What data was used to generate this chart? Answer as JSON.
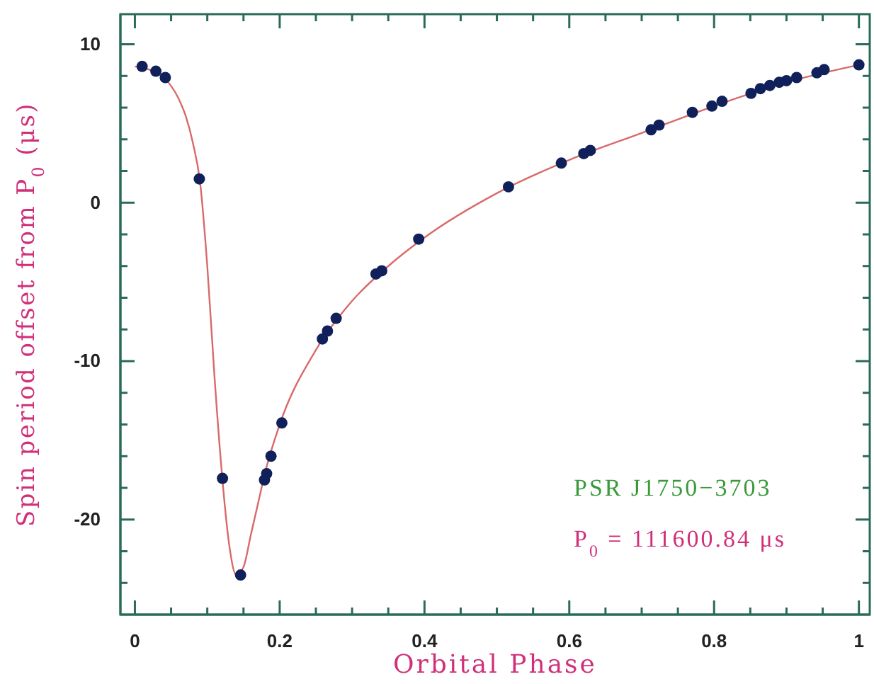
{
  "chart_data": {
    "type": "scatter",
    "xlabel": "Orbital Phase",
    "ylabel": "Spin period offset from P$_{0}$ (μs)",
    "annotations": [
      "PSR J1750−3703",
      "P$_{0}$ = 111600.84 μs"
    ],
    "xlim": [
      -0.02,
      1.015
    ],
    "ylim": [
      -26,
      11.9
    ],
    "xticks": [
      0,
      {
        "value": 0.05,
        "label": null
      },
      {
        "value": 0.1,
        "label": null
      },
      {
        "value": 0.15,
        "label": null
      },
      0.2,
      {
        "value": 0.25,
        "label": null
      },
      {
        "value": 0.3,
        "label": null
      },
      {
        "value": 0.35,
        "label": null
      },
      0.4,
      {
        "value": 0.45,
        "label": null
      },
      {
        "value": 0.5,
        "label": null
      },
      {
        "value": 0.55,
        "label": null
      },
      0.6,
      {
        "value": 0.65,
        "label": null
      },
      {
        "value": 0.7,
        "label": null
      },
      {
        "value": 0.75,
        "label": null
      },
      0.8,
      {
        "value": 0.85,
        "label": null
      },
      {
        "value": 0.9,
        "label": null
      },
      {
        "value": 0.95,
        "label": null
      },
      1
    ],
    "yticks": [
      {
        "value": -24,
        "label": null
      },
      {
        "value": -22,
        "label": null
      },
      -20,
      {
        "value": -18,
        "label": null
      },
      {
        "value": -16,
        "label": null
      },
      {
        "value": -14,
        "label": null
      },
      {
        "value": -12,
        "label": null
      },
      -10,
      {
        "value": -8,
        "label": null
      },
      {
        "value": -6,
        "label": null
      },
      {
        "value": -4,
        "label": null
      },
      {
        "value": -2,
        "label": null
      },
      0,
      {
        "value": 2,
        "label": null
      },
      {
        "value": 4,
        "label": null
      },
      {
        "value": 6,
        "label": null
      },
      {
        "value": 8,
        "label": null
      },
      10
    ],
    "grid": false,
    "marker": "circle",
    "series": [
      {
        "type": "line",
        "color": "#d96a6a",
        "line_style": "solid",
        "marker": "none",
        "x": [
          0,
          0.02,
          0.04,
          0.06,
          0.07,
          0.08,
          0.09,
          0.1,
          0.11,
          0.12,
          0.13,
          0.14,
          0.15,
          0.16,
          0.17,
          0.18,
          0.2,
          0.25,
          0.3,
          0.35,
          0.4,
          0.5,
          0.6,
          0.7,
          0.8,
          0.9,
          1.0
        ],
        "values": [
          8.6,
          8.4,
          7.9,
          6.6,
          5.5,
          3.8,
          1.3,
          -4,
          -11,
          -17,
          -21.5,
          -23.5,
          -23,
          -21,
          -19,
          -17,
          -14,
          -9.3,
          -6.2,
          -4,
          -2.2,
          0.6,
          2.7,
          4.4,
          6.1,
          7.6,
          8.7
        ]
      },
      {
        "color": "#10205a",
        "x": [
          0.01,
          0.029,
          0.042,
          0.089,
          0.121,
          0.146,
          0.179,
          0.182,
          0.188,
          0.203,
          0.259,
          0.266,
          0.278,
          0.333,
          0.341,
          0.392,
          0.516,
          0.589,
          0.62,
          0.629,
          0.713,
          0.724,
          0.77,
          0.797,
          0.811,
          0.851,
          0.864,
          0.877,
          0.89,
          0.9,
          0.914,
          0.942,
          0.952,
          1.0
        ],
        "values": [
          8.6,
          8.3,
          7.9,
          1.5,
          -17.4,
          -23.5,
          -17.5,
          -17.1,
          -16.0,
          -13.9,
          -8.6,
          -8.1,
          -7.3,
          -4.5,
          -4.3,
          -2.3,
          1.0,
          2.5,
          3.1,
          3.3,
          4.6,
          4.9,
          5.7,
          6.1,
          6.4,
          6.9,
          7.2,
          7.4,
          7.6,
          7.7,
          7.9,
          8.2,
          8.4,
          8.7
        ]
      }
    ]
  }
}
